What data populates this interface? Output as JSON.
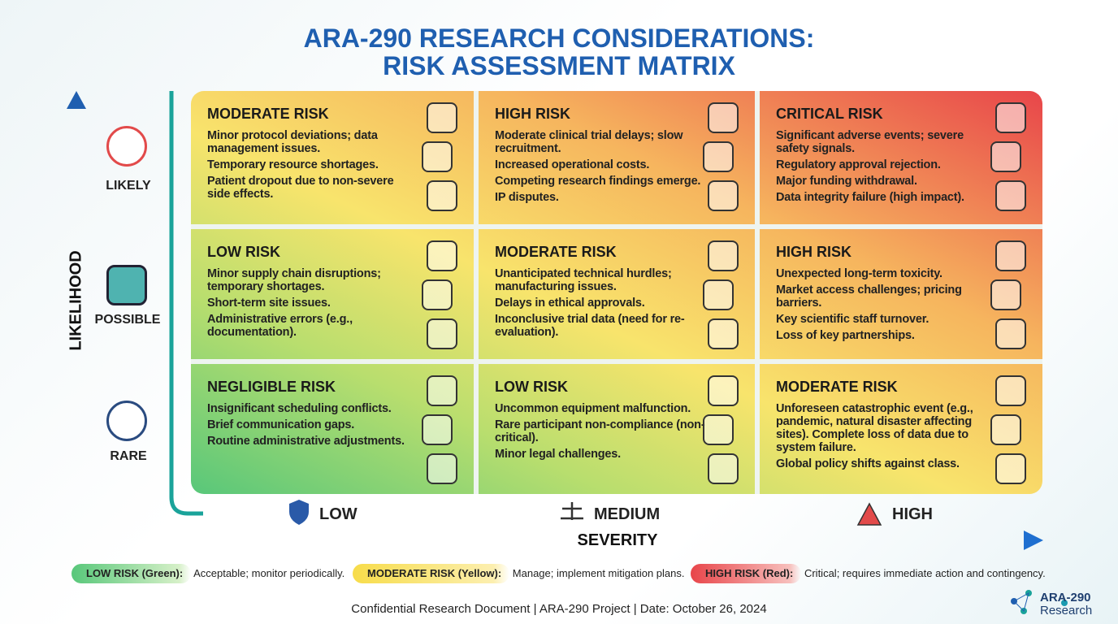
{
  "header": {
    "title_lines": [
      "ARA-290 RESEARCH CONSIDERATIONS:",
      "RISK ASSESSMENT MATRIX"
    ]
  },
  "likelihood_axis": {
    "label": "LIKELIHOOD",
    "levels": [
      "LIKELY",
      "POSSIBLE",
      "RARE"
    ]
  },
  "severity_axis": {
    "label": "SEVERITY",
    "levels": [
      "LOW",
      "MEDIUM",
      "HIGH"
    ]
  },
  "matrix": {
    "rows": [
      [
        {
          "heading": "MODERATE RISK",
          "items": [
            "Minor protocol deviations; data management issues.",
            "Temporary resource shortages.",
            "Patient dropout due to non-severe side effects."
          ]
        },
        {
          "heading": "HIGH RISK",
          "items": [
            "Moderate clinical trial delays; slow recruitment.",
            "Increased operational costs.",
            "Competing research findings emerge.",
            "IP disputes."
          ]
        },
        {
          "heading": "CRITICAL RISK",
          "items": [
            "Significant adverse events; severe safety signals.",
            "Regulatory approval rejection.",
            "Major funding withdrawal.",
            "Data integrity failure (high impact)."
          ]
        }
      ],
      [
        {
          "heading": "LOW RISK",
          "items": [
            "Minor supply chain disruptions; temporary shortages.",
            "Short-term site issues.",
            "Administrative errors (e.g., documentation)."
          ]
        },
        {
          "heading": "MODERATE RISK",
          "items": [
            "Unanticipated technical hurdles; manufacturing issues.",
            "Delays in ethical approvals.",
            "Inconclusive trial data (need for re-evaluation)."
          ]
        },
        {
          "heading": "HIGH RISK",
          "items": [
            "Unexpected long-term toxicity.",
            "Market access challenges; pricing barriers.",
            "Key scientific staff turnover.",
            "Loss of key partnerships."
          ]
        }
      ],
      [
        {
          "heading": "NEGLIGIBLE RISK",
          "items": [
            "Insignificant scheduling conflicts.",
            "Brief communication gaps.",
            "Routine administrative adjustments."
          ]
        },
        {
          "heading": "LOW RISK",
          "items": [
            "Uncommon equipment malfunction.",
            "Rare participant non-compliance (non-critical).",
            "Minor legal challenges."
          ]
        },
        {
          "heading": "MODERATE RISK",
          "items": [
            "Unforeseen catastrophic event (e.g., pandemic, natural disaster affecting sites). Complete loss of data due to system failure.",
            "Global policy shifts against class."
          ]
        }
      ]
    ]
  },
  "legend": [
    {
      "label": "LOW RISK (Green):",
      "text": "Acceptable; monitor periodically."
    },
    {
      "label": "MODERATE RISK (Yellow):",
      "text": "Manage; implement mitigation plans."
    },
    {
      "label": "HIGH RISK (Red):",
      "text": "Critical; requires immediate action and contingency."
    }
  ],
  "footer": {
    "text": "Confidential Research Document | ARA-290 Project | Date: October 26, 2024",
    "logo_lines": [
      "ARA-290",
      "Research"
    ]
  }
}
